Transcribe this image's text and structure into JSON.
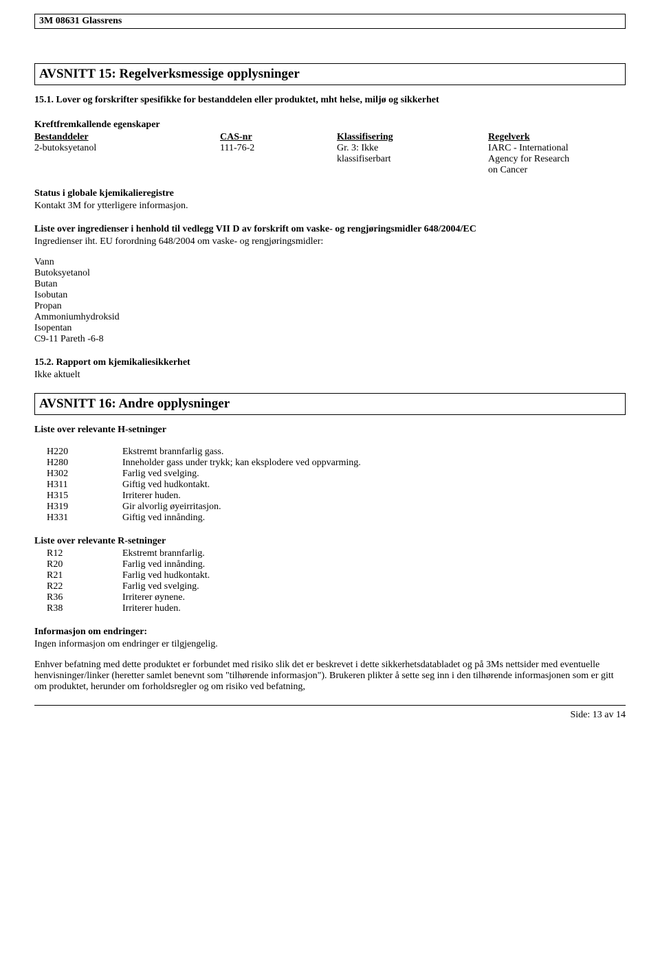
{
  "header": {
    "product": "3M 08631 Glassrens"
  },
  "section15": {
    "title": "AVSNITT 15: Regelverksmessige opplysninger",
    "sub1_heading": "15.1. Lover og forskrifter spesifikke for bestanddelen eller produktet, mht helse, miljø og sikkerhet",
    "carcinogenic_heading": "Kreftfremkallende egenskaper",
    "table": {
      "head": {
        "component": "Bestanddeler",
        "cas": "CAS-nr",
        "classification": "Klassifisering",
        "regulation": "Regelverk"
      },
      "row": {
        "component": "2-butoksyetanol",
        "cas": "111-76-2",
        "classification_l1": "Gr. 3: Ikke",
        "classification_l2": "klassifiserbart",
        "regulation_l1": "IARC - International",
        "regulation_l2": "Agency for Research",
        "regulation_l3": "on Cancer"
      }
    },
    "status_heading": "Status i globale kjemikalieregistre",
    "status_text": "Kontakt 3M for ytterligere informasjon.",
    "ingredients_heading": "Liste over ingredienser i henhold til vedlegg VII D av forskrift om vaske- og rengjøringsmidler 648/2004/EC",
    "ingredients_intro": "Ingredienser iht. EU forordning 648/2004 om vaske- og rengjøringsmidler:",
    "ingredients": [
      "Vann",
      "Butoksyetanol",
      "Butan",
      "Isobutan",
      "Propan",
      "Ammoniumhydroksid",
      "Isopentan",
      "C9-11 Pareth -6-8"
    ],
    "sub2_heading": "15.2. Rapport om kjemikaliesikkerhet",
    "sub2_text": "Ikke aktuelt"
  },
  "section16": {
    "title": "AVSNITT 16: Andre opplysninger",
    "h_heading": "Liste over relevante H-setninger",
    "h_statements": [
      {
        "code": "H220",
        "text": "Ekstremt brannfarlig gass."
      },
      {
        "code": "H280",
        "text": "Inneholder gass under trykk; kan eksplodere ved oppvarming."
      },
      {
        "code": "H302",
        "text": "Farlig ved svelging."
      },
      {
        "code": "H311",
        "text": "Giftig ved hudkontakt."
      },
      {
        "code": "H315",
        "text": "Irriterer huden."
      },
      {
        "code": "H319",
        "text": "Gir alvorlig øyeirritasjon."
      },
      {
        "code": "H331",
        "text": "Giftig ved innånding."
      }
    ],
    "r_heading": "Liste over relevante R-setninger",
    "r_statements": [
      {
        "code": "R12",
        "text": "Ekstremt brannfarlig."
      },
      {
        "code": "R20",
        "text": "Farlig ved innånding."
      },
      {
        "code": "R21",
        "text": "Farlig ved hudkontakt."
      },
      {
        "code": "R22",
        "text": "Farlig ved svelging."
      },
      {
        "code": "R36",
        "text": "Irriterer øynene."
      },
      {
        "code": "R38",
        "text": "Irriterer huden."
      }
    ],
    "changes_heading": "Informasjon om endringer:",
    "changes_text": "Ingen informasjon om endringer er tilgjengelig.",
    "disclaimer": "Enhver befatning med dette produktet er forbundet med risiko slik det er beskrevet i dette sikkerhetsdatabladet og på 3Ms nettsider med eventuelle henvisninger/linker (heretter samlet benevnt som \"tilhørende informasjon\"). Brukeren plikter å sette seg inn i den tilhørende informasjonen som er gitt om produktet, herunder om forholdsregler og om risiko ved befatning,"
  },
  "footer": {
    "page_label": "Side: 13 av  14"
  }
}
